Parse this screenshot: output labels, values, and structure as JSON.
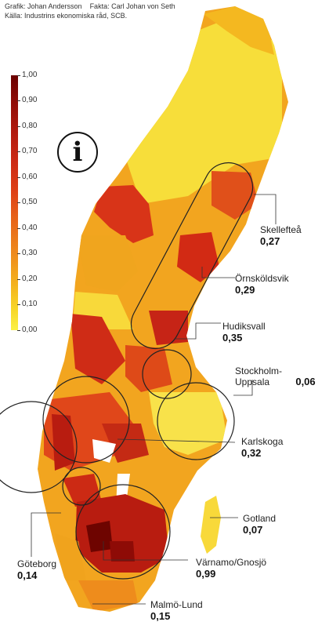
{
  "credits": {
    "graphics": "Grafik: Johan Andersson",
    "facts": "Fakta: Carl Johan von Seth",
    "source": "Källa: Industrins ekonomiska råd, SCB."
  },
  "legend": {
    "ticks": [
      "1,00",
      "0,90",
      "0,80",
      "0,70",
      "0,60",
      "0,50",
      "0,40",
      "0,30",
      "0,20",
      "0,10",
      "0,00"
    ],
    "colors": [
      "#6a0000",
      "#8e0b06",
      "#b11a0e",
      "#cc2a14",
      "#dd3f16",
      "#e65f18",
      "#ee8a1c",
      "#f4b21e",
      "#f7d728",
      "#fbf046"
    ]
  },
  "info_icon": "info-icon",
  "regions": [
    {
      "name": "Skellefteå",
      "value": "0,27"
    },
    {
      "name": "Örnsköldsvik",
      "value": "0,29"
    },
    {
      "name": "Hudiksvall",
      "value": "0,35"
    },
    {
      "name": "Stockholm-Uppsala",
      "value": "0,06"
    },
    {
      "name": "Karlskoga",
      "value": "0,32"
    },
    {
      "name": "Gotland",
      "value": "0,07"
    },
    {
      "name": "Värnamo/Gnosjö",
      "value": "0,99"
    },
    {
      "name": "Göteborg",
      "value": "0,14"
    },
    {
      "name": "Malmö-Lund",
      "value": "0,15"
    }
  ]
}
